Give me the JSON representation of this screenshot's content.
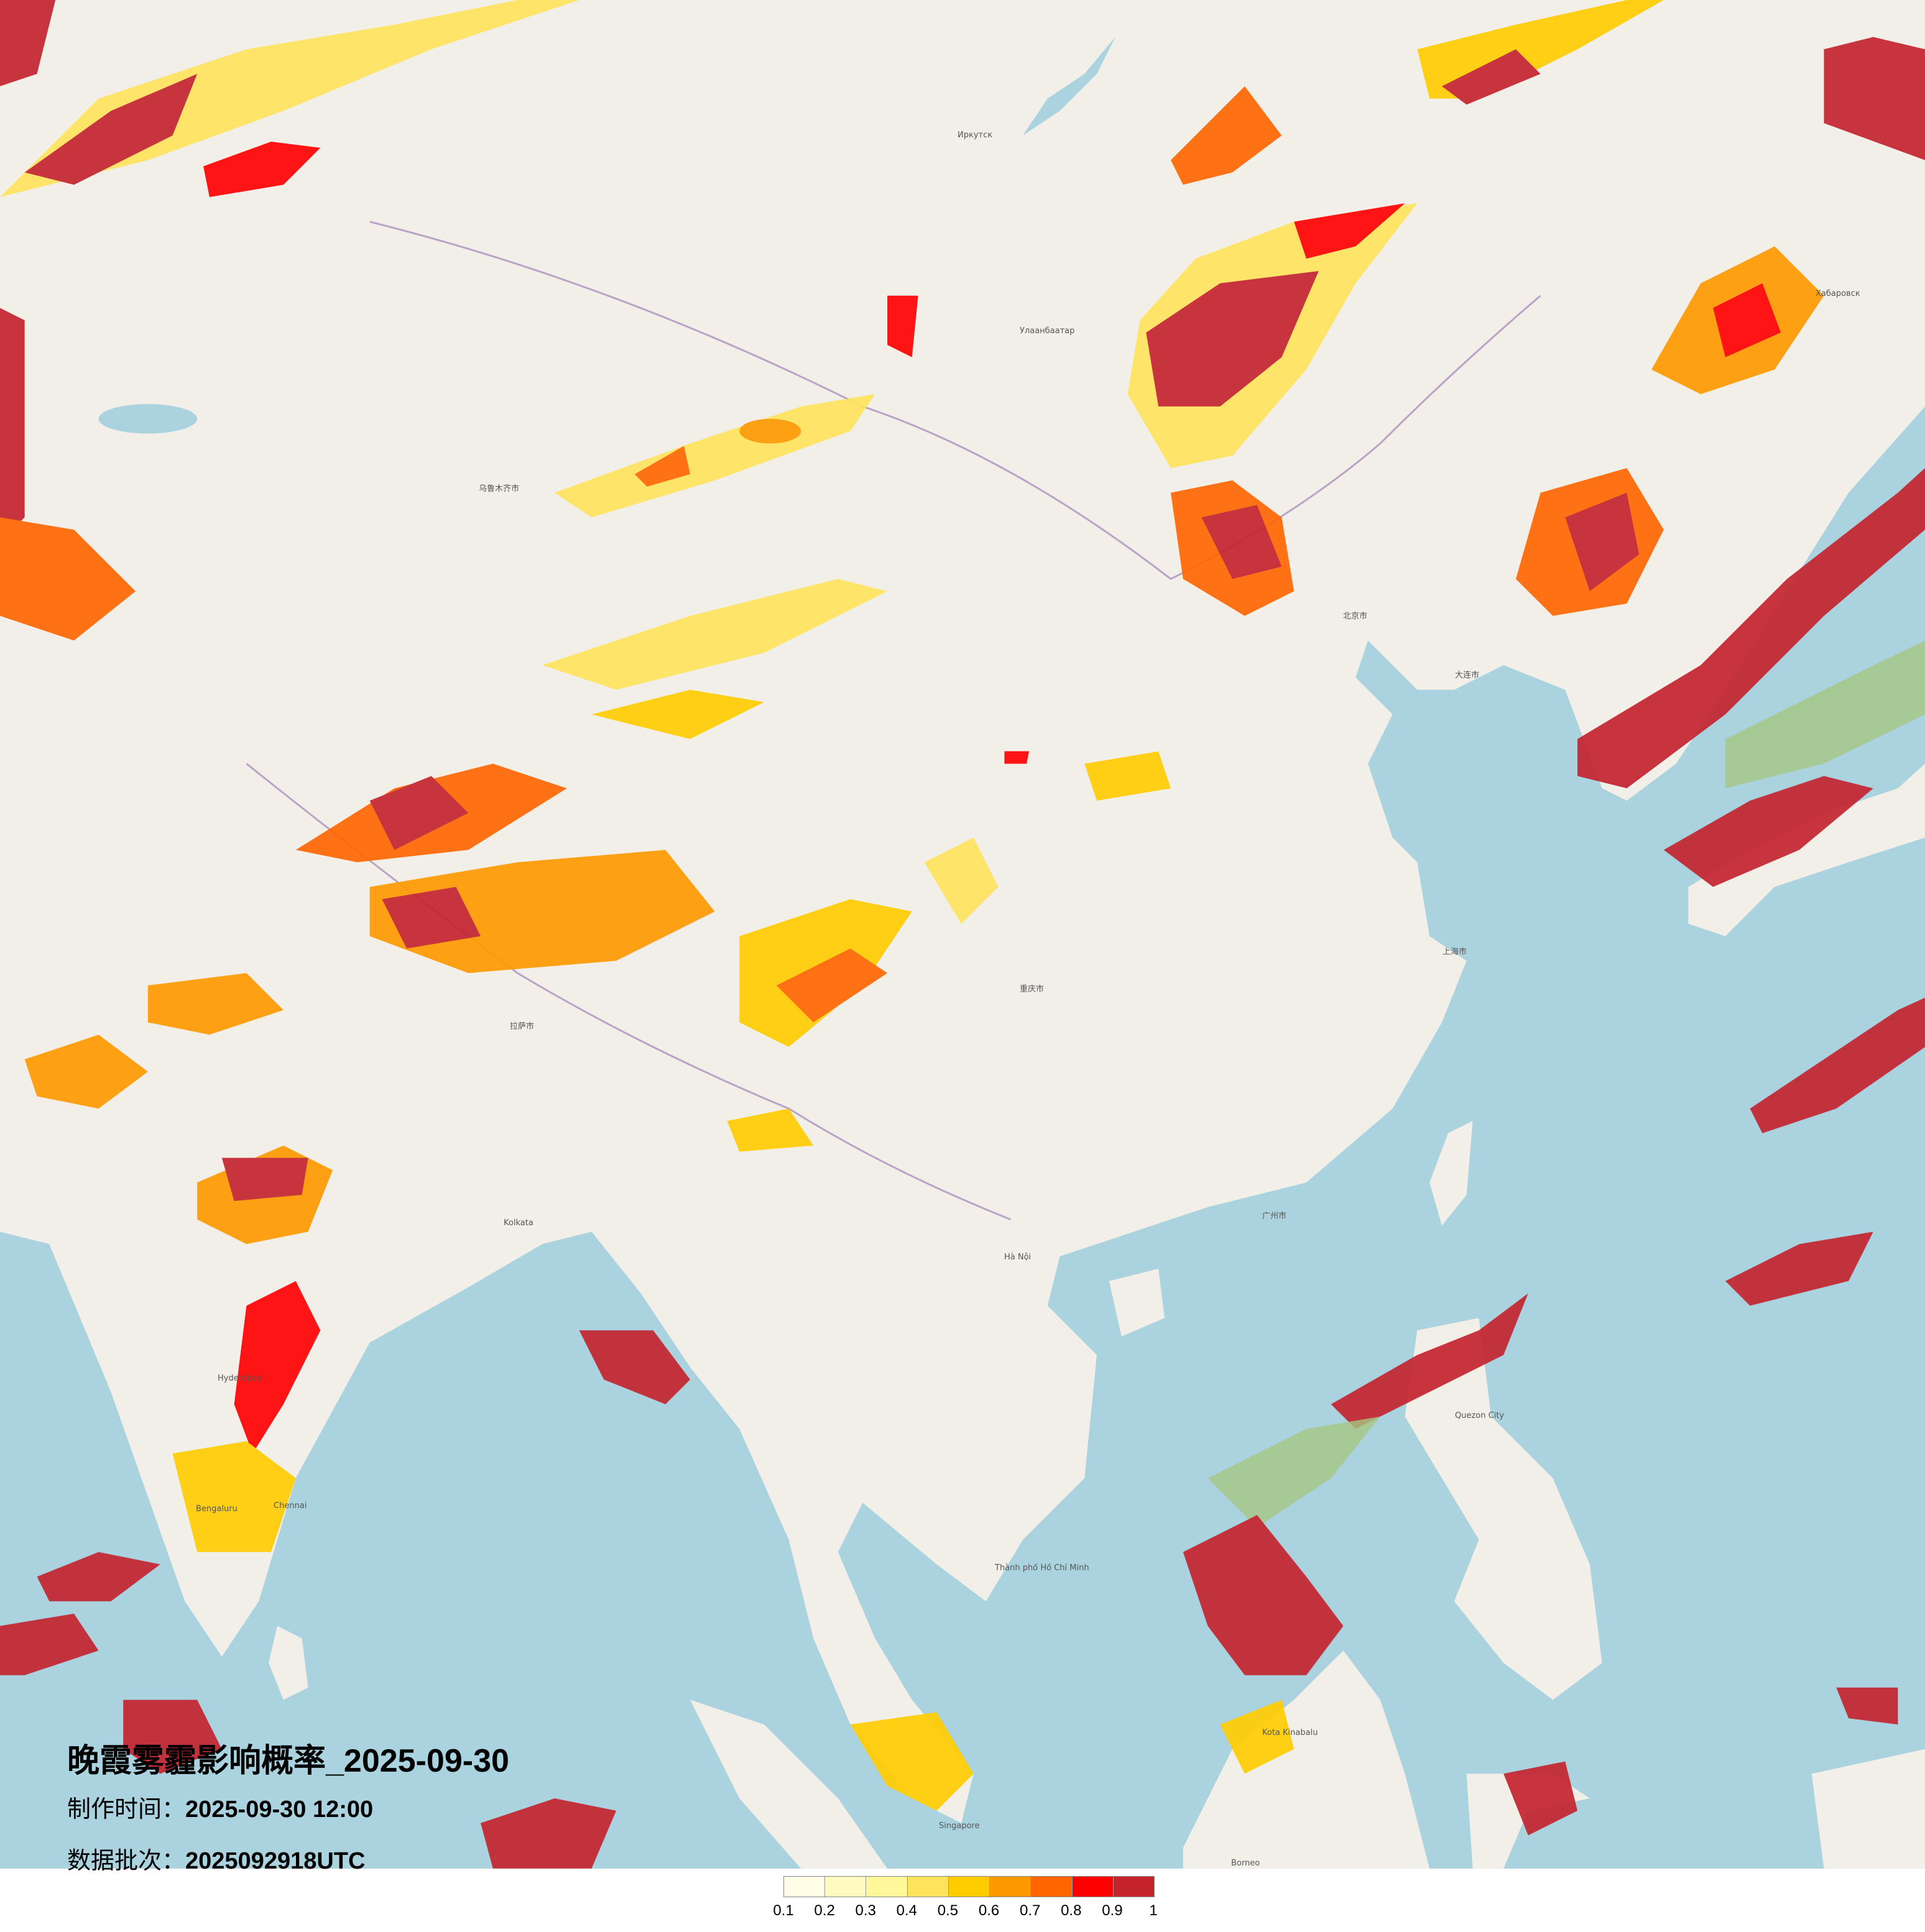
{
  "title": "晚霞雾霾影响概率_2025-09-30",
  "production_time": {
    "label": "制作时间：",
    "value": "2025-09-30 12:00"
  },
  "data_batch": {
    "label": "数据批次：",
    "value": "2025092918UTC"
  },
  "legend": {
    "ticks": [
      "0.1",
      "0.2",
      "0.3",
      "0.4",
      "0.5",
      "0.6",
      "0.7",
      "0.8",
      "0.9",
      "1"
    ],
    "colors": [
      "#fffde6",
      "#fffac0",
      "#fff799",
      "#ffe35c",
      "#ffcc00",
      "#ff9900",
      "#ff6600",
      "#ff0000",
      "#c4232e"
    ]
  },
  "base_colors": {
    "land": "#f2efe9",
    "sea": "#aad3df"
  },
  "cities": [
    {
      "name": "北京市"
    },
    {
      "name": "Улаанбаатар"
    },
    {
      "name": "上海市"
    },
    {
      "name": "重庆市"
    },
    {
      "name": "Kolkata"
    },
    {
      "name": "Hà Nội"
    },
    {
      "name": "Bengaluru"
    },
    {
      "name": "Singapore"
    },
    {
      "name": "Quezon City"
    },
    {
      "name": "Иркутск"
    },
    {
      "name": "Хабаровск"
    },
    {
      "name": "大连市"
    },
    {
      "name": "广州市"
    },
    {
      "name": "Hyderabad"
    },
    {
      "name": "Chennai"
    },
    {
      "name": "Kota Kinabalu"
    },
    {
      "name": "乌鲁木齐市"
    },
    {
      "name": "拉萨市"
    },
    {
      "name": "Thành phố Hồ Chí Minh"
    },
    {
      "name": "Borneo"
    }
  ]
}
